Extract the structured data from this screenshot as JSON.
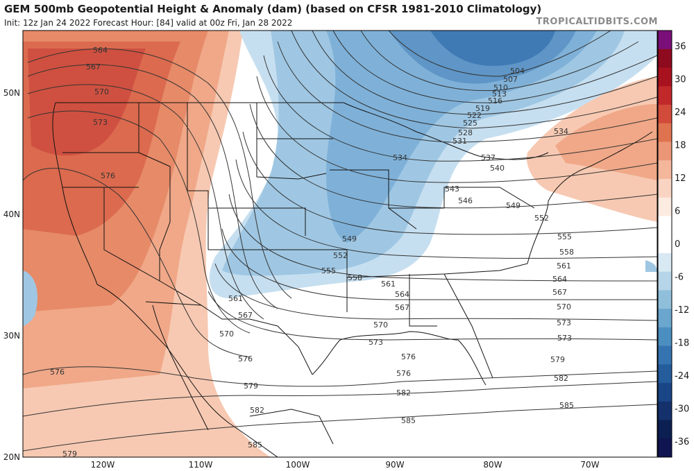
{
  "header": {
    "title": "GEM 500mb Geopotential Height & Anomaly (dam) (based on CFSR 1981-2010 Climatology)",
    "subtitle": "Init: 12z Jan 24 2022   Forecast Hour: [84]   valid at 00z Fri, Jan 28 2022",
    "brand": "TROPICALTIDBITS.COM"
  },
  "map": {
    "lat_labels": [
      "50N",
      "40N",
      "30N",
      "20N"
    ],
    "lon_labels": [
      "120W",
      "110W",
      "100W",
      "90W",
      "80W",
      "70W"
    ],
    "contour_labels": [
      "564",
      "567",
      "570",
      "573",
      "576",
      "576",
      "576",
      "579",
      "579",
      "582",
      "582",
      "585",
      "585",
      "504",
      "507",
      "510",
      "513",
      "516",
      "519",
      "522",
      "525",
      "528",
      "531",
      "534",
      "534",
      "537",
      "540",
      "543",
      "546",
      "549",
      "549",
      "552",
      "552",
      "555",
      "555",
      "558",
      "558",
      "561",
      "561",
      "561",
      "564",
      "564",
      "567",
      "567",
      "567",
      "570",
      "570",
      "570",
      "573",
      "573",
      "573",
      "576",
      "576",
      "579",
      "582",
      "585"
    ]
  },
  "colorbar": {
    "ticks": [
      "36",
      "30",
      "24",
      "18",
      "12",
      "6",
      "0",
      "-6",
      "-12",
      "-18",
      "-24",
      "-30",
      "-36"
    ],
    "colors": [
      "#7a0f7a",
      "#8e0a1e",
      "#a8121e",
      "#c0282a",
      "#d24a3a",
      "#e0734f",
      "#eb9676",
      "#f4b79c",
      "#f9d4c2",
      "#fcebe0",
      "#ffffff",
      "#ffffff",
      "#d8e9f3",
      "#b6d5e8",
      "#90bfdb",
      "#6aa6cd",
      "#4b8ec0",
      "#3574b0",
      "#245c9c",
      "#1a4586",
      "#14316c",
      "#0c1f52",
      "#101450"
    ]
  }
}
